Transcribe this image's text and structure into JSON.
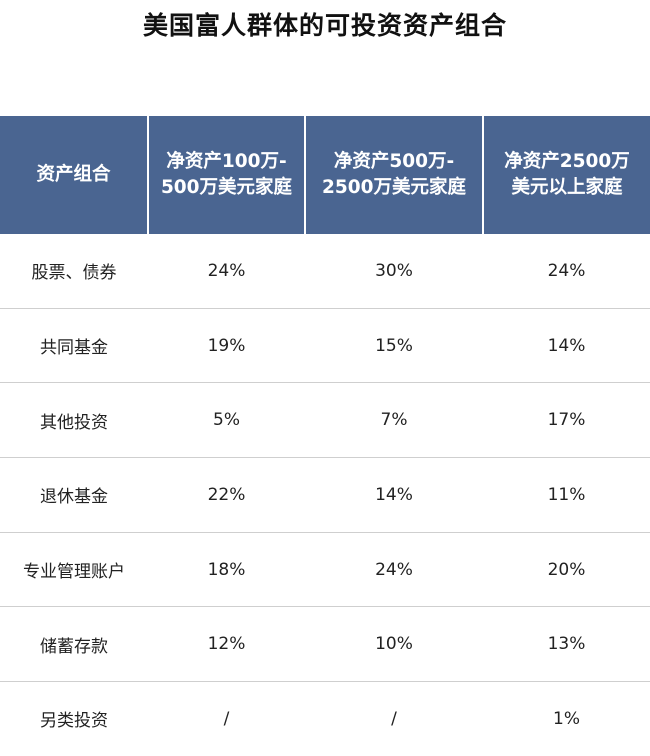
{
  "title": "美国富人群体的可投资资产组合",
  "colors": {
    "header_bg": "#4a6591",
    "header_text": "#ffffff",
    "row_divider": "#cfcfcf"
  },
  "table": {
    "headers": [
      {
        "lines": [
          "资产组合"
        ]
      },
      {
        "lines": [
          "净资产100万-",
          "500万美元家庭"
        ]
      },
      {
        "lines": [
          "净资产500万-",
          "2500万美元家庭"
        ]
      },
      {
        "lines": [
          "净资产2500万",
          "美元以上家庭"
        ]
      }
    ],
    "rows": [
      [
        "股票、债券",
        "24%",
        "30%",
        "24%"
      ],
      [
        "共同基金",
        "19%",
        "15%",
        "14%"
      ],
      [
        "其他投资",
        "5%",
        "7%",
        "17%"
      ],
      [
        "退休基金",
        "22%",
        "14%",
        "11%"
      ],
      [
        "专业管理账户",
        "18%",
        "24%",
        "20%"
      ],
      [
        "储蓄存款",
        "12%",
        "10%",
        "13%"
      ],
      [
        "另类投资",
        "/",
        "/",
        "1%"
      ]
    ]
  }
}
